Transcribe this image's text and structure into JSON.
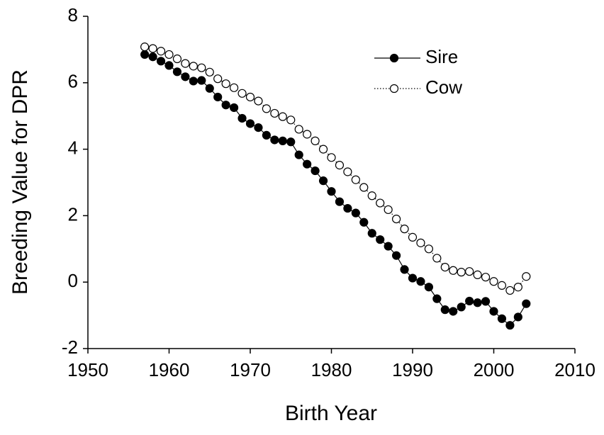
{
  "chart_data": {
    "type": "line",
    "x_label": "Birth Year",
    "y_label": "Breeding Value for DPR",
    "x": [
      1957,
      1958,
      1959,
      1960,
      1961,
      1962,
      1963,
      1964,
      1965,
      1966,
      1967,
      1968,
      1969,
      1970,
      1971,
      1972,
      1973,
      1974,
      1975,
      1976,
      1977,
      1978,
      1979,
      1980,
      1981,
      1982,
      1983,
      1984,
      1985,
      1986,
      1987,
      1988,
      1989,
      1990,
      1991,
      1992,
      1993,
      1994,
      1995,
      1996,
      1997,
      1998,
      1999,
      2000,
      2001,
      2002,
      2003,
      2004
    ],
    "series": [
      {
        "name": "Sire",
        "color": "#000000",
        "dash": "solid",
        "marker": "filled",
        "values": [
          6.85,
          6.78,
          6.65,
          6.52,
          6.33,
          6.18,
          6.05,
          6.07,
          5.83,
          5.57,
          5.33,
          5.25,
          4.93,
          4.77,
          4.65,
          4.42,
          4.28,
          4.25,
          4.22,
          3.83,
          3.55,
          3.35,
          3.05,
          2.73,
          2.42,
          2.22,
          2.08,
          1.8,
          1.47,
          1.28,
          1.08,
          0.8,
          0.38,
          0.12,
          0.02,
          -0.15,
          -0.5,
          -0.83,
          -0.88,
          -0.75,
          -0.57,
          -0.62,
          -0.58,
          -0.88,
          -1.1,
          -1.3,
          -1.05,
          -0.65
        ]
      },
      {
        "name": "Cow",
        "color": "#000000",
        "dash": "dotted",
        "marker": "open",
        "values": [
          7.08,
          7.03,
          6.95,
          6.85,
          6.72,
          6.58,
          6.5,
          6.45,
          6.32,
          6.12,
          5.97,
          5.85,
          5.68,
          5.57,
          5.45,
          5.22,
          5.08,
          4.98,
          4.88,
          4.6,
          4.45,
          4.25,
          4.0,
          3.75,
          3.52,
          3.32,
          3.08,
          2.85,
          2.6,
          2.38,
          2.18,
          1.9,
          1.6,
          1.35,
          1.18,
          1.0,
          0.72,
          0.45,
          0.35,
          0.3,
          0.32,
          0.22,
          0.15,
          0.02,
          -0.1,
          -0.25,
          -0.15,
          0.17
        ]
      }
    ],
    "xlim": [
      1950,
      2010
    ],
    "xticks": [
      1950,
      1960,
      1970,
      1980,
      1990,
      2000,
      2010
    ],
    "ylim": [
      -2,
      8
    ],
    "yticks": [
      -2,
      0,
      2,
      4,
      6,
      8
    ],
    "grid": false,
    "legend": "upper right"
  }
}
